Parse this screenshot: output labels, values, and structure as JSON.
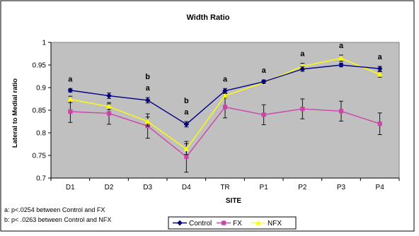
{
  "chart_data": {
    "type": "line",
    "title": "Width Ratio",
    "xlabel": "SITE",
    "ylabel": "Lateral to Medial ratio",
    "categories": [
      "D1",
      "D2",
      "D3",
      "D4",
      "TR",
      "P1",
      "P2",
      "P3",
      "P4"
    ],
    "ylim": [
      0.7,
      1.0
    ],
    "yticks": [
      "0.7",
      "0.75",
      "0.8",
      "0.85",
      "0.9",
      "0.95",
      "1"
    ],
    "grid": false,
    "plot_background": "#c0c0c0",
    "legend_position": "bottom",
    "series": [
      {
        "name": "Control",
        "color": "#000080",
        "marker": "diamond",
        "values": [
          0.894,
          0.882,
          0.872,
          0.819,
          0.893,
          0.913,
          0.941,
          0.95,
          0.942
        ],
        "errors": [
          0.004,
          0.006,
          0.006,
          0.006,
          0.005,
          0.004,
          0.005,
          0.004,
          0.005
        ]
      },
      {
        "name": "FX",
        "color": "#cc44aa",
        "marker": "square",
        "values": [
          0.847,
          0.843,
          0.815,
          0.747,
          0.857,
          0.84,
          0.853,
          0.848,
          0.82
        ],
        "errors": [
          0.024,
          0.024,
          0.027,
          0.034,
          0.024,
          0.022,
          0.022,
          0.022,
          0.024
        ]
      },
      {
        "name": "NFX",
        "color": "#ffff00",
        "marker": "triangle",
        "values": [
          0.874,
          0.858,
          0.825,
          0.764,
          0.882,
          0.911,
          0.947,
          0.965,
          0.929
        ],
        "errors": [
          0.007,
          0.006,
          0.01,
          0.012,
          0.005,
          0.004,
          0.007,
          0.007,
          0.006
        ]
      }
    ],
    "annotations": [
      {
        "category": "D1",
        "labels": [
          "a"
        ]
      },
      {
        "category": "D3",
        "labels": [
          "b",
          "a"
        ]
      },
      {
        "category": "D4",
        "labels": [
          "b",
          "a"
        ]
      },
      {
        "category": "TR",
        "labels": [
          "a"
        ]
      },
      {
        "category": "P1",
        "labels": [
          "a"
        ]
      },
      {
        "category": "P2",
        "labels": [
          "a"
        ]
      },
      {
        "category": "P3",
        "labels": [
          "a"
        ]
      },
      {
        "category": "P4",
        "labels": [
          "a"
        ]
      }
    ]
  },
  "footnotes": {
    "a": "a: p<.0254 between Control and FX",
    "b": "b: p< .0263 between Control and NFX"
  }
}
